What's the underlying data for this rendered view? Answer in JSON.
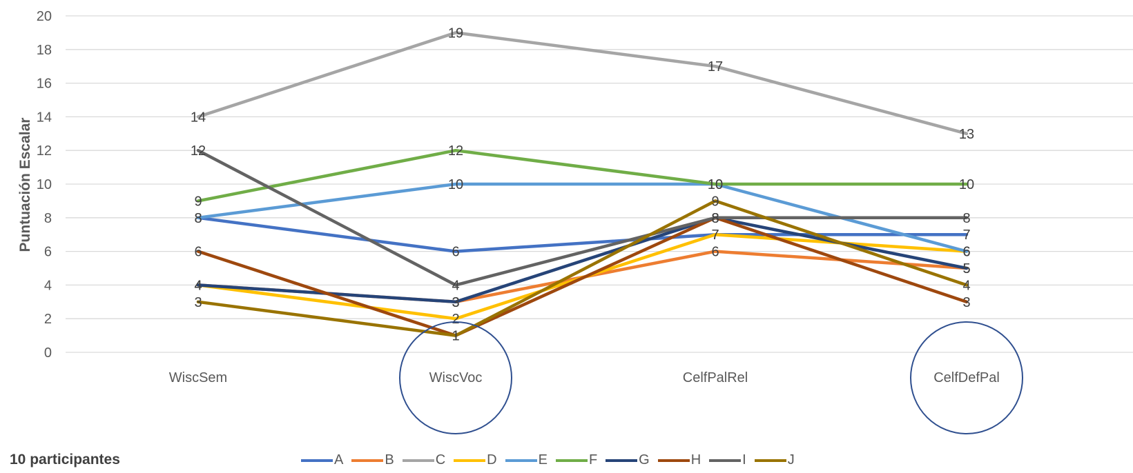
{
  "chart_data": {
    "type": "line",
    "ylabel": "Puntuación Escalar",
    "ylim": [
      0,
      20
    ],
    "yticks": [
      0,
      2,
      4,
      6,
      8,
      10,
      12,
      14,
      16,
      18,
      20
    ],
    "grid": true,
    "categories": [
      "WiscSem",
      "WiscVoc",
      "CelfPalRel",
      "CelfDefPal"
    ],
    "circled_categories": [
      "WiscVoc",
      "CelfDefPal"
    ],
    "legend_position": "bottom",
    "series": [
      {
        "name": "A",
        "color": "#4472C4",
        "values": [
          8,
          6,
          7,
          7
        ]
      },
      {
        "name": "B",
        "color": "#ED7D31",
        "values": [
          4,
          3,
          6,
          5
        ]
      },
      {
        "name": "C",
        "color": "#A5A5A5",
        "values": [
          14,
          19,
          17,
          13
        ]
      },
      {
        "name": "D",
        "color": "#FFC000",
        "values": [
          4,
          2,
          7,
          6
        ]
      },
      {
        "name": "E",
        "color": "#5B9BD5",
        "values": [
          8,
          10,
          10,
          6
        ]
      },
      {
        "name": "F",
        "color": "#70AD47",
        "values": [
          9,
          12,
          10,
          10
        ]
      },
      {
        "name": "G",
        "color": "#264478",
        "values": [
          4,
          3,
          8,
          5
        ]
      },
      {
        "name": "H",
        "color": "#9E480E",
        "values": [
          6,
          1,
          8,
          3
        ]
      },
      {
        "name": "I",
        "color": "#636363",
        "values": [
          12,
          4,
          8,
          8
        ]
      },
      {
        "name": "J",
        "color": "#997300",
        "values": [
          3,
          1,
          9,
          4
        ]
      }
    ],
    "footnote": "10 participantes"
  }
}
